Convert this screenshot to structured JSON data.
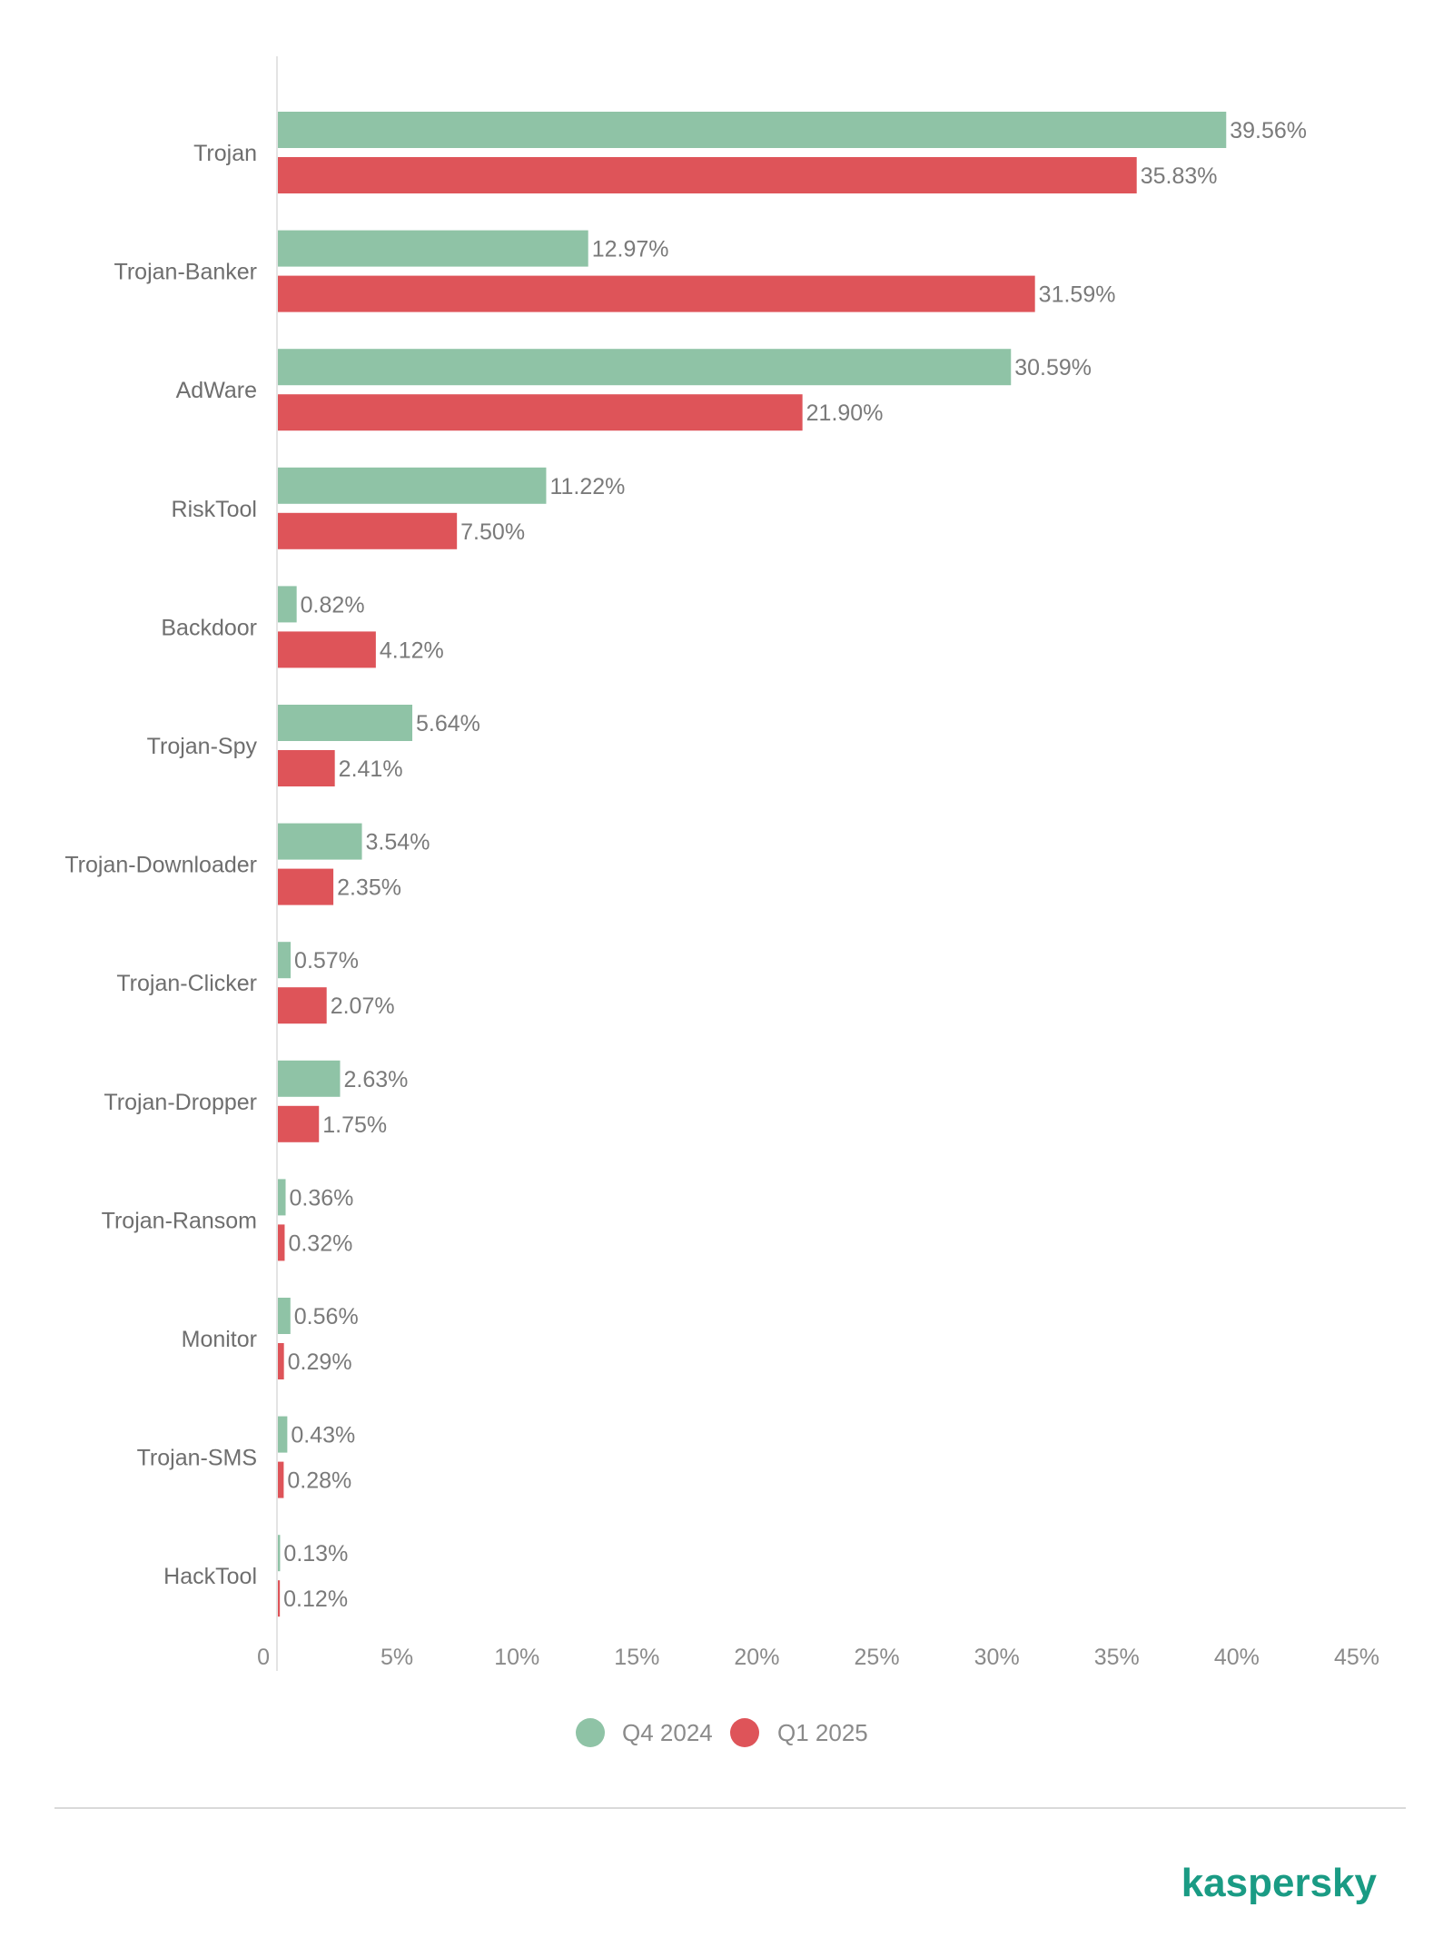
{
  "chart_data": {
    "type": "bar",
    "orientation": "horizontal",
    "categories": [
      "Trojan",
      "Trojan-Banker",
      "AdWare",
      "RiskTool",
      "Backdoor",
      "Trojan-Spy",
      "Trojan-Downloader",
      "Trojan-Clicker",
      "Trojan-Dropper",
      "Trojan-Ransom",
      "Monitor",
      "Trojan-SMS",
      "HackTool"
    ],
    "series": [
      {
        "name": "Q4 2024",
        "color": "#8fc3a6",
        "values": [
          39.56,
          12.97,
          30.59,
          11.22,
          0.82,
          5.64,
          3.54,
          0.57,
          2.63,
          0.36,
          0.56,
          0.43,
          0.13
        ],
        "labels": [
          "39.56%",
          "12.97%",
          "30.59%",
          "11.22%",
          "0.82%",
          "5.64%",
          "3.54%",
          "0.57%",
          "2.63%",
          "0.36%",
          "0.56%",
          "0.43%",
          "0.13%"
        ]
      },
      {
        "name": "Q1 2025",
        "color": "#de5459",
        "values": [
          35.83,
          31.59,
          21.9,
          7.5,
          4.12,
          2.41,
          2.35,
          2.07,
          1.75,
          0.32,
          0.29,
          0.28,
          0.12
        ],
        "labels": [
          "35.83%",
          "31.59%",
          "21.90%",
          "7.50%",
          "4.12%",
          "2.41%",
          "2.35%",
          "2.07%",
          "1.75%",
          "0.32%",
          "0.29%",
          "0.28%",
          "0.12%"
        ]
      }
    ],
    "xlim": [
      0,
      45
    ],
    "xticks": [
      0,
      5,
      10,
      15,
      20,
      25,
      30,
      35,
      40,
      45
    ],
    "xtick_labels": [
      "0",
      "5%",
      "10%",
      "15%",
      "20%",
      "25%",
      "30%",
      "35%",
      "40%",
      "45%"
    ],
    "title": "",
    "xlabel": "",
    "ylabel": "",
    "grid": false,
    "legend_position": "bottom-center"
  },
  "brand": {
    "name": "kaspersky",
    "color": "#1a9b84"
  }
}
